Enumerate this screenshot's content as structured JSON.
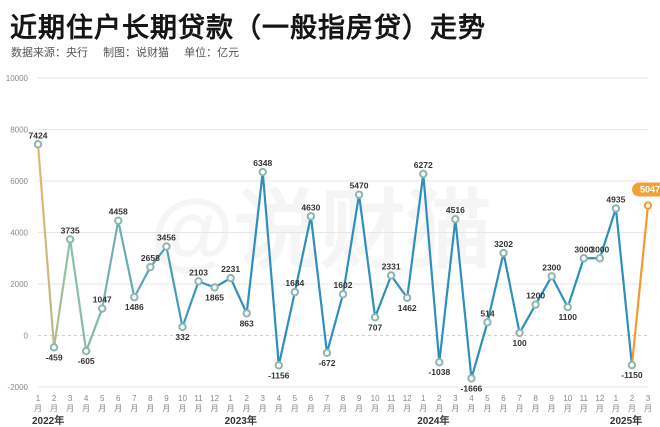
{
  "header": {
    "title": "近期住户长期贷款（一般指房贷）走势",
    "source": "数据来源：央行",
    "maker": "制图：说财猫",
    "unit": "单位：亿元"
  },
  "watermark": "@说财猫",
  "colors": {
    "line_start": "#e8b46a",
    "line_mid": "#2e8fbf",
    "line_end": "#f29a2f",
    "highlight_badge": "#f0a23a",
    "marker_stroke": "#8fb5b0",
    "gridline": "#e6e6e6",
    "zero_line": "#cfcfcf"
  },
  "chart_data": {
    "type": "line",
    "title": "近期住户长期贷款（一般指房贷）走势",
    "xlabel": "",
    "ylabel": "",
    "ylim": [
      -2000,
      10000
    ],
    "yticks": [
      -2000,
      0,
      2000,
      4000,
      6000,
      8000,
      10000
    ],
    "grid": true,
    "legend": "none",
    "x": [
      "2022-01",
      "2022-02",
      "2022-03",
      "2022-04",
      "2022-05",
      "2022-06",
      "2022-07",
      "2022-08",
      "2022-09",
      "2022-10",
      "2022-11",
      "2022-12",
      "2023-01",
      "2023-02",
      "2023-03",
      "2023-04",
      "2023-05",
      "2023-06",
      "2023-07",
      "2023-08",
      "2023-09",
      "2023-10",
      "2023-11",
      "2023-12",
      "2024-01",
      "2024-02",
      "2024-03",
      "2024-04",
      "2024-05",
      "2024-06",
      "2024-07",
      "2024-08",
      "2024-09",
      "2024-10",
      "2024-11",
      "2024-12",
      "2025-01",
      "2025-02",
      "2025-03"
    ],
    "month_labels": [
      "1",
      "2",
      "3",
      "4",
      "5",
      "6",
      "7",
      "8",
      "9",
      "10",
      "11",
      "12",
      "1",
      "2",
      "3",
      "4",
      "5",
      "6",
      "7",
      "8",
      "9",
      "10",
      "11",
      "12",
      "1",
      "2",
      "3",
      "4",
      "5",
      "6",
      "7",
      "8",
      "9",
      "10",
      "11",
      "12",
      "1",
      "2",
      "3"
    ],
    "month_suffix": "月",
    "year_labels": [
      {
        "label": "2022年",
        "index": 0
      },
      {
        "label": "2023年",
        "index": 12
      },
      {
        "label": "2024年",
        "index": 24
      },
      {
        "label": "2025年",
        "index": 36
      }
    ],
    "values": [
      7424,
      -459,
      3735,
      -605,
      1047,
      4458,
      1486,
      2658,
      3456,
      332,
      2103,
      1865,
      2231,
      863,
      6348,
      -1156,
      1684,
      4630,
      -672,
      1602,
      5470,
      707,
      2331,
      1462,
      6272,
      -1038,
      4516,
      -1666,
      514,
      3202,
      100,
      1200,
      2300,
      1100,
      3000,
      3000,
      4935,
      -1150,
      5047
    ],
    "labels": [
      "7424",
      "-459",
      "3735",
      "-605",
      "1047",
      "4458",
      "1486",
      "2658",
      "3456",
      "332",
      "2103",
      "1865",
      "2231",
      "863",
      "6348",
      "-1156",
      "1684",
      "4630",
      "-672",
      "1602",
      "5470",
      "707",
      "2331",
      "1462",
      "6272",
      "-1038",
      "4516",
      "-1666",
      "514",
      "3202",
      "100",
      "1200",
      "2300",
      "1100",
      "3000",
      "3000",
      "4935",
      "-1150",
      "5047"
    ],
    "highlight_last": true
  }
}
